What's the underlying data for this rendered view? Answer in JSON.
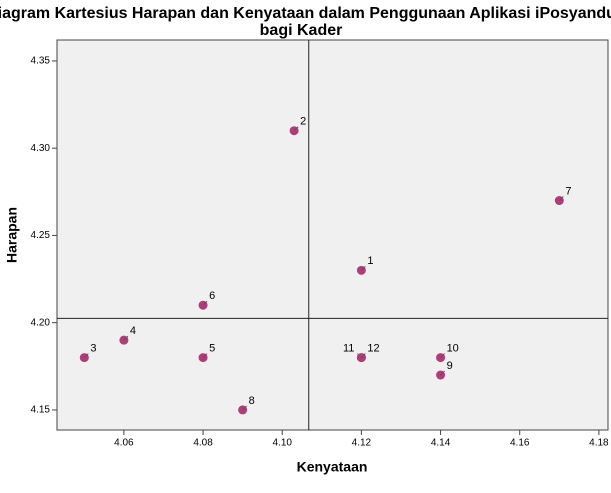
{
  "chart_data": {
    "type": "scatter",
    "title": "Diagram Kartesius Harapan dan Kenyataan dalam Penggunaan Aplikasi iPosyandu bagi Kader",
    "x_label": "Kenyataan",
    "y_label": "Harapan",
    "labels": [
      "1",
      "2",
      "3",
      "4",
      "5",
      "6",
      "7",
      "8",
      "9",
      "10",
      "11",
      "12"
    ],
    "x": [
      4.12,
      4.103,
      4.05,
      4.06,
      4.08,
      4.08,
      4.17,
      4.09,
      4.14,
      4.14,
      4.12,
      4.12
    ],
    "y": [
      4.23,
      4.31,
      4.18,
      4.19,
      4.18,
      4.21,
      4.27,
      4.15,
      4.17,
      4.18,
      4.18,
      4.18
    ],
    "color": "#b03c7a",
    "reference_lines": {
      "x": 4.1067,
      "y": 4.2025
    },
    "xlim": [
      4.0431,
      4.1823
    ],
    "ylim": [
      4.1385,
      4.362
    ],
    "xticks": [
      4.06,
      4.08,
      {
        "value": 4.1,
        "label": "4.10"
      },
      4.12,
      4.14,
      4.16,
      4.18
    ],
    "yticks": [
      4.15,
      {
        "value": 4.2,
        "label": "4.20"
      },
      4.25,
      {
        "value": 4.3,
        "label": "4.30"
      },
      4.35
    ]
  }
}
